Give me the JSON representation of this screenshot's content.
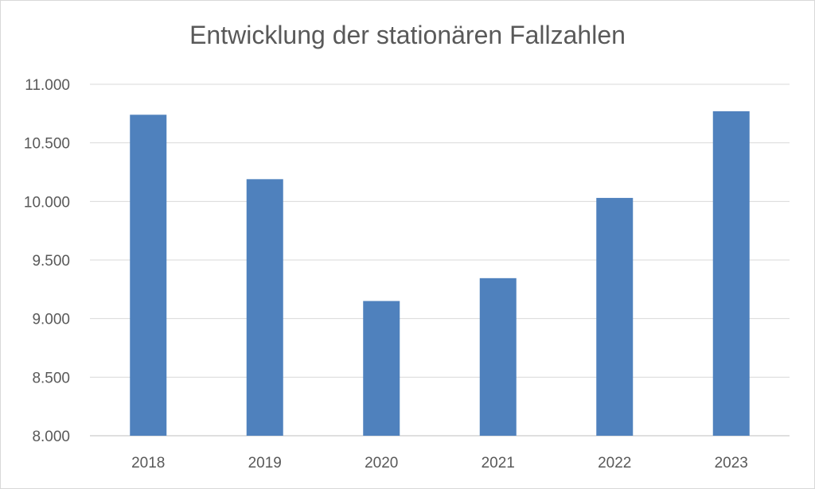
{
  "chart_data": {
    "type": "bar",
    "title": "Entwicklung der stationären Fallzahlen",
    "xlabel": "",
    "ylabel": "",
    "categories": [
      "2018",
      "2019",
      "2020",
      "2021",
      "2022",
      "2023"
    ],
    "values": [
      10740,
      10190,
      9150,
      9345,
      10030,
      10770
    ],
    "ylim": [
      8000,
      11000
    ],
    "yticks": [
      8000,
      8500,
      9000,
      9500,
      10000,
      10500,
      11000
    ],
    "ytick_labels": [
      "8.000",
      "8.500",
      "9.000",
      "9.500",
      "10.000",
      "10.500",
      "11.000"
    ],
    "grid": true,
    "legend": "none",
    "bar_color": "#4f81bd"
  }
}
